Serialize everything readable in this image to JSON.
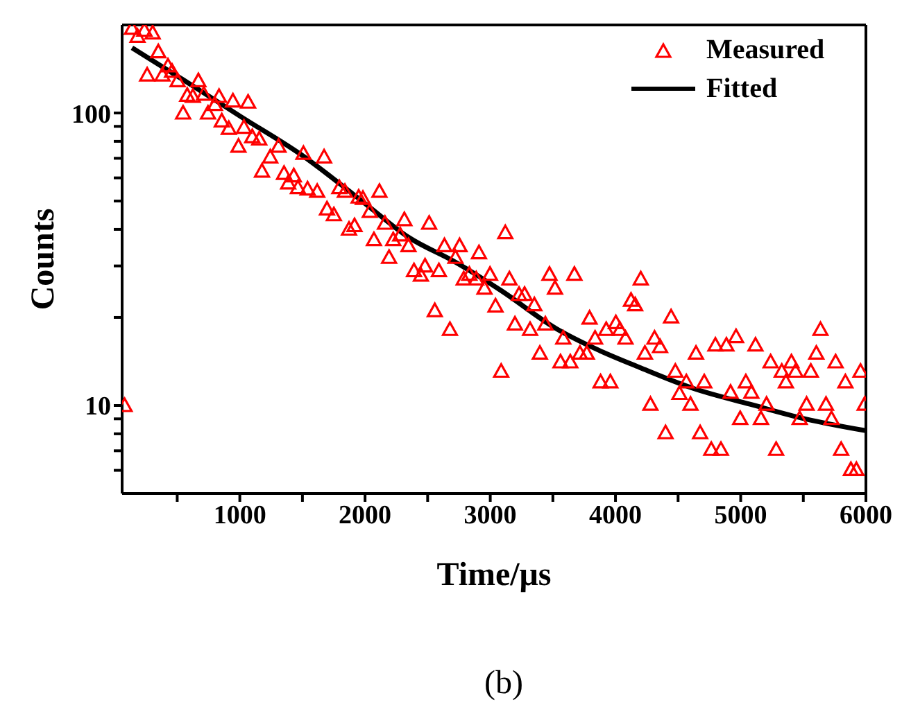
{
  "chart_data": {
    "type": "scatter",
    "xlabel": "Time/μs",
    "ylabel": "Counts",
    "annotations": [
      "(b)"
    ],
    "log": "y",
    "grid": false,
    "legend": "top right",
    "xlim": [
      60,
      6000
    ],
    "xticks": [
      {
        "value": 500,
        "label": null
      },
      1000,
      {
        "value": 1500,
        "label": null
      },
      2000,
      {
        "value": 2500,
        "label": null
      },
      3000,
      {
        "value": 3500,
        "label": null
      },
      4000,
      {
        "value": 4500,
        "label": null
      },
      5000,
      {
        "value": 5500,
        "label": null
      },
      6000
    ],
    "ylim": [
      5,
      200
    ],
    "yticks": [
      {
        "value": 6,
        "label": null
      },
      {
        "value": 7,
        "label": null
      },
      {
        "value": 8,
        "label": null
      },
      {
        "value": 9,
        "label": null
      },
      10,
      {
        "value": 20,
        "label": null
      },
      {
        "value": 30,
        "label": null
      },
      {
        "value": 40,
        "label": null
      },
      {
        "value": 50,
        "label": null
      },
      {
        "value": 60,
        "label": null
      },
      {
        "value": 70,
        "label": null
      },
      {
        "value": 80,
        "label": null
      },
      {
        "value": 90,
        "label": null
      },
      100
    ],
    "series": [
      {
        "name": "Measured",
        "marker": "triangle",
        "color": "#ff0000",
        "x": [
          80,
          139,
          183,
          238,
          304,
          349,
          260,
          382,
          426,
          459,
          503,
          580,
          669,
          713,
          547,
          625,
          834,
          746,
          945,
          1066,
          801,
          856,
          912,
          1033,
          989,
          1099,
          1155,
          1177,
          1243,
          1309,
          1353,
          1386,
          1431,
          1464,
          1508,
          1541,
          1618,
          1673,
          1696,
          1751,
          1795,
          1839,
          1872,
          1916,
          1949,
          2038,
          2071,
          2115,
          2159,
          1983,
          2314,
          2512,
          2225,
          2281,
          2347,
          2192,
          2391,
          2446,
          2479,
          2590,
          2634,
          2755,
          2722,
          2910,
          3120,
          2788,
          2833,
          2888,
          2954,
          2998,
          3042,
          2557,
          2678,
          3153,
          3197,
          3230,
          3274,
          3318,
          3352,
          3396,
          3440,
          3473,
          3517,
          3561,
          3639,
          3583,
          3672,
          3716,
          3771,
          3793,
          3837,
          3926,
          4003,
          4036,
          4080,
          3881,
          3959,
          3087,
          4157,
          4202,
          4124,
          4235,
          4312,
          4356,
          4279,
          4400,
          4444,
          4478,
          4511,
          4566,
          4599,
          4643,
          4676,
          4709,
          4765,
          4842,
          4798,
          4886,
          4963,
          4919,
          4996,
          5041,
          5085,
          5118,
          5162,
          5206,
          5239,
          5283,
          5328,
          5361,
          5405,
          5438,
          5471,
          5526,
          5560,
          5604,
          5637,
          5681,
          5725,
          5758,
          5802,
          5836,
          5880,
          5924,
          5957,
          5990
        ],
        "values": [
          10,
          195,
          183,
          192,
          188,
          162,
          135,
          135,
          145,
          139,
          129,
          115,
          129,
          116,
          100,
          114,
          114,
          100,
          110,
          109,
          107,
          94,
          88.6,
          89.4,
          77,
          83,
          81.5,
          63.3,
          70.8,
          77,
          62.2,
          57.7,
          61,
          55.6,
          72.8,
          55,
          54,
          70.8,
          47,
          44.9,
          55.6,
          54,
          40.1,
          41.2,
          51.6,
          46.1,
          36.9,
          54,
          42,
          51.1,
          43.2,
          42,
          36.9,
          38.3,
          35.2,
          32.1,
          28.9,
          27.9,
          30,
          28.9,
          35.2,
          35.2,
          32.1,
          33.3,
          39,
          27.1,
          28.1,
          27.1,
          25.2,
          28.1,
          21.9,
          21.1,
          18.2,
          27.1,
          19,
          24,
          24,
          18.2,
          22.1,
          15.1,
          19,
          28.1,
          25.2,
          14.1,
          14.1,
          17,
          28.1,
          15.1,
          15.1,
          19.9,
          17,
          18.2,
          19.2,
          18.2,
          17,
          12.05,
          12.05,
          13.1,
          22.1,
          27.1,
          22.9,
          15.1,
          17,
          15.9,
          10.1,
          8.07,
          20.1,
          13.1,
          11,
          12.05,
          10.1,
          15.1,
          8.07,
          12.05,
          7.08,
          7.08,
          16.1,
          16.1,
          17.2,
          11.1,
          9.03,
          12.05,
          11.1,
          16.1,
          9.03,
          10.1,
          14.1,
          7.08,
          13.1,
          12.05,
          14.1,
          13.1,
          9.03,
          10.1,
          13.1,
          15.1,
          18.2,
          10.1,
          9.03,
          14.1,
          7.08,
          12.05,
          6.04,
          6.04,
          13.1,
          10.1
        ]
      },
      {
        "name": "Fitted",
        "type": "line",
        "marker": "none",
        "line_style": "solid",
        "color": "#000000",
        "x": [
          139,
          547,
          1011,
          1486,
          1983,
          2347,
          2722,
          3087,
          3528,
          3859,
          4191,
          4632,
          5074,
          5515,
          6000
        ],
        "values": [
          167,
          130,
          97,
          72.2,
          49.7,
          37.6,
          30.9,
          24.7,
          18.3,
          15.5,
          13.5,
          11.4,
          10.1,
          9,
          8.2
        ]
      }
    ]
  }
}
